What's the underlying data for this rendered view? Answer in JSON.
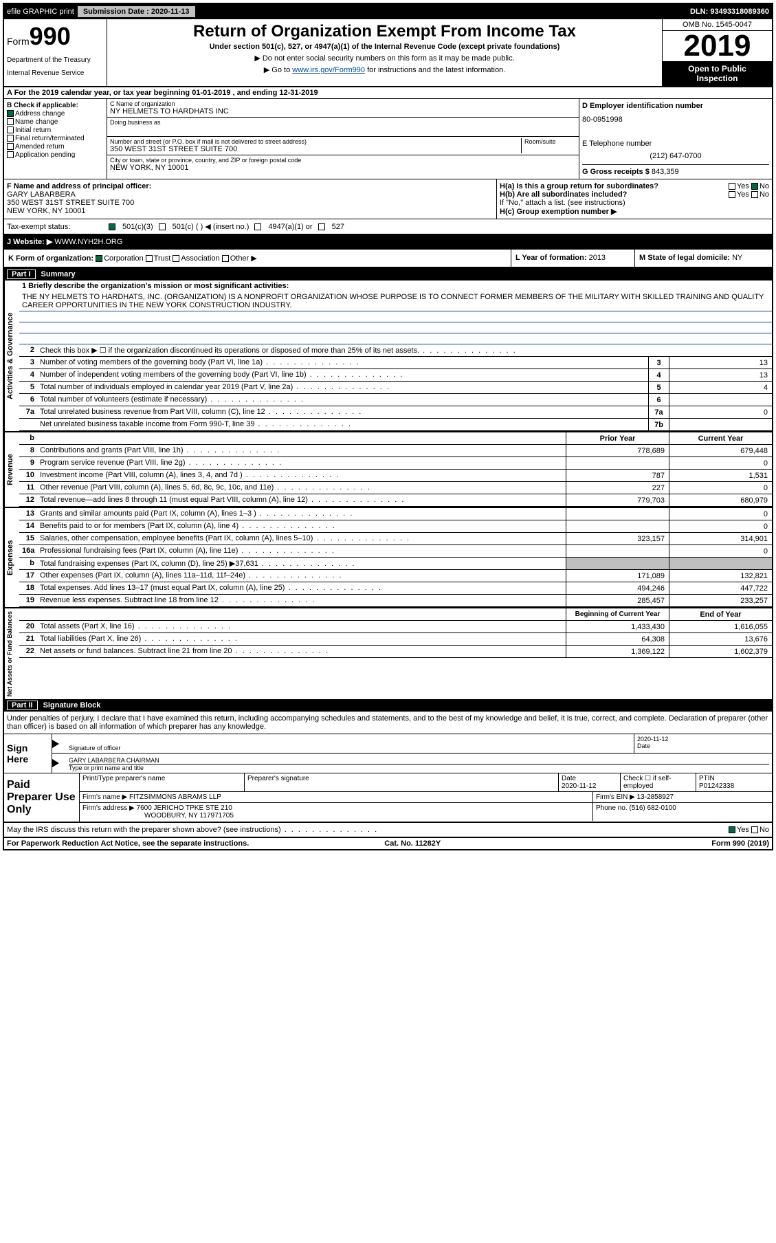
{
  "topbar": {
    "efile": "efile GRAPHIC print",
    "submission_label": "Submission Date :",
    "submission_date": "2020-11-13",
    "dln": "DLN: 93493318089360"
  },
  "header": {
    "form_prefix": "Form",
    "form_number": "990",
    "dept1": "Department of the Treasury",
    "dept2": "Internal Revenue Service",
    "title": "Return of Organization Exempt From Income Tax",
    "subtitle": "Under section 501(c), 527, or 4947(a)(1) of the Internal Revenue Code (except private foundations)",
    "note1": "▶ Do not enter social security numbers on this form as it may be made public.",
    "note2_pre": "▶ Go to ",
    "note2_link": "www.irs.gov/Form990",
    "note2_post": " for instructions and the latest information.",
    "omb": "OMB No. 1545-0047",
    "year": "2019",
    "inspect1": "Open to Public",
    "inspect2": "Inspection"
  },
  "rowA": "A For the 2019 calendar year, or tax year beginning 01-01-2019    , and ending 12-31-2019",
  "boxB": {
    "label": "B Check if applicable:",
    "opts": [
      "Address change",
      "Name change",
      "Initial return",
      "Final return/terminated",
      "Amended return",
      "Application pending"
    ],
    "checked_idx": 0
  },
  "boxC": {
    "name_lbl": "C Name of organization",
    "name": "NY HELMETS TO HARDHATS INC",
    "dba_lbl": "Doing business as",
    "dba": "",
    "addr_lbl": "Number and street (or P.O. box if mail is not delivered to street address)",
    "room_lbl": "Room/suite",
    "addr": "350 WEST 31ST STREET SUITE 700",
    "city_lbl": "City or town, state or province, country, and ZIP or foreign postal code",
    "city": "NEW YORK, NY  10001"
  },
  "boxD": {
    "lbl": "D Employer identification number",
    "val": "80-0951998"
  },
  "boxE": {
    "lbl": "E Telephone number",
    "val": "(212) 647-0700"
  },
  "boxG": {
    "lbl": "G Gross receipts $",
    "val": "843,359"
  },
  "boxF": {
    "lbl": "F  Name and address of principal officer:",
    "name": "GARY LABARBERA",
    "addr1": "350 WEST 31ST STREET SUITE 700",
    "addr2": "NEW YORK, NY  10001"
  },
  "boxH": {
    "a": "H(a)  Is this a group return for subordinates?",
    "a_no": true,
    "b": "H(b)  Are all subordinates included?",
    "b_note": "If \"No,\" attach a list. (see instructions)",
    "c": "H(c)  Group exemption number ▶"
  },
  "taxStatus": {
    "lbl": "Tax-exempt status:",
    "opts": [
      "501(c)(3)",
      "501(c) (   ) ◀ (insert no.)",
      "4947(a)(1) or",
      "527"
    ],
    "checked_idx": 0
  },
  "website": {
    "lbl": "J  Website: ▶",
    "val": "WWW.NYH2H.ORG"
  },
  "rowK": "K Form of organization:",
  "rowK_opts": [
    "Corporation",
    "Trust",
    "Association",
    "Other ▶"
  ],
  "rowL": {
    "lbl": "L Year of formation:",
    "val": "2013"
  },
  "rowM": {
    "lbl": "M State of legal domicile:",
    "val": "NY"
  },
  "part1": {
    "num": "Part I",
    "title": "Summary"
  },
  "mission_lbl": "1  Briefly describe the organization's mission or most significant activities:",
  "mission": "THE NY HELMETS TO HARDHATS, INC. (ORGANIZATION) IS A NONPROFIT ORGANIZATION WHOSE PURPOSE IS TO CONNECT FORMER MEMBERS OF THE MILITARY WITH SKILLED TRAINING AND QUALITY CAREER OPPORTUNITIES IN THE NEW YORK CONSTRUCTION INDUSTRY.",
  "vtabs": [
    "Activities & Governance",
    "Revenue",
    "Expenses",
    "Net Assets or Fund Balances"
  ],
  "lines_gov": [
    {
      "n": "2",
      "d": "Check this box ▶ ☐  if the organization discontinued its operations or disposed of more than 25% of its net assets."
    },
    {
      "n": "3",
      "d": "Number of voting members of the governing body (Part VI, line 1a)",
      "box": "3",
      "v": "13"
    },
    {
      "n": "4",
      "d": "Number of independent voting members of the governing body (Part VI, line 1b)",
      "box": "4",
      "v": "13"
    },
    {
      "n": "5",
      "d": "Total number of individuals employed in calendar year 2019 (Part V, line 2a)",
      "box": "5",
      "v": "4"
    },
    {
      "n": "6",
      "d": "Total number of volunteers (estimate if necessary)",
      "box": "6",
      "v": ""
    },
    {
      "n": "7a",
      "d": "Total unrelated business revenue from Part VIII, column (C), line 12",
      "box": "7a",
      "v": "0"
    },
    {
      "n": "",
      "d": "Net unrelated business taxable income from Form 990-T, line 39",
      "box": "7b",
      "v": ""
    }
  ],
  "col_hdrs": {
    "py": "Prior Year",
    "cy": "Current Year"
  },
  "lines_rev": [
    {
      "n": "8",
      "d": "Contributions and grants (Part VIII, line 1h)",
      "py": "778,689",
      "cy": "679,448"
    },
    {
      "n": "9",
      "d": "Program service revenue (Part VIII, line 2g)",
      "py": "",
      "cy": "0"
    },
    {
      "n": "10",
      "d": "Investment income (Part VIII, column (A), lines 3, 4, and 7d )",
      "py": "787",
      "cy": "1,531"
    },
    {
      "n": "11",
      "d": "Other revenue (Part VIII, column (A), lines 5, 6d, 8c, 9c, 10c, and 11e)",
      "py": "227",
      "cy": "0"
    },
    {
      "n": "12",
      "d": "Total revenue—add lines 8 through 11 (must equal Part VIII, column (A), line 12)",
      "py": "779,703",
      "cy": "680,979"
    }
  ],
  "lines_exp": [
    {
      "n": "13",
      "d": "Grants and similar amounts paid (Part IX, column (A), lines 1–3 )",
      "py": "",
      "cy": "0"
    },
    {
      "n": "14",
      "d": "Benefits paid to or for members (Part IX, column (A), line 4)",
      "py": "",
      "cy": "0"
    },
    {
      "n": "15",
      "d": "Salaries, other compensation, employee benefits (Part IX, column (A), lines 5–10)",
      "py": "323,157",
      "cy": "314,901"
    },
    {
      "n": "16a",
      "d": "Professional fundraising fees (Part IX, column (A), line 11e)",
      "py": "",
      "cy": "0"
    },
    {
      "n": "b",
      "d": "Total fundraising expenses (Part IX, column (D), line 25) ▶37,631",
      "py": "grey",
      "cy": "grey"
    },
    {
      "n": "17",
      "d": "Other expenses (Part IX, column (A), lines 11a–11d, 11f–24e)",
      "py": "171,089",
      "cy": "132,821"
    },
    {
      "n": "18",
      "d": "Total expenses. Add lines 13–17 (must equal Part IX, column (A), line 25)",
      "py": "494,246",
      "cy": "447,722"
    },
    {
      "n": "19",
      "d": "Revenue less expenses. Subtract line 18 from line 12",
      "py": "285,457",
      "cy": "233,257"
    }
  ],
  "col_hdrs2": {
    "py": "Beginning of Current Year",
    "cy": "End of Year"
  },
  "lines_net": [
    {
      "n": "20",
      "d": "Total assets (Part X, line 16)",
      "py": "1,433,430",
      "cy": "1,616,055"
    },
    {
      "n": "21",
      "d": "Total liabilities (Part X, line 26)",
      "py": "64,308",
      "cy": "13,676"
    },
    {
      "n": "22",
      "d": "Net assets or fund balances. Subtract line 21 from line 20",
      "py": "1,369,122",
      "cy": "1,602,379"
    }
  ],
  "part2": {
    "num": "Part II",
    "title": "Signature Block"
  },
  "sig_decl": "Under penalties of perjury, I declare that I have examined this return, including accompanying schedules and statements, and to the best of my knowledge and belief, it is true, correct, and complete. Declaration of preparer (other than officer) is based on all information of which preparer has any knowledge.",
  "sign_here": "Sign Here",
  "sig_officer_lbl": "Signature of officer",
  "sig_date_lbl": "Date",
  "sig_date": "2020-11-12",
  "sig_name": "GARY LABARBERA  CHAIRMAN",
  "sig_name_lbl": "Type or print name and title",
  "paid": {
    "title": "Paid Preparer Use Only",
    "h1": "Print/Type preparer's name",
    "h2": "Preparer's signature",
    "h3": "Date",
    "h4": "Check ☐ if self-employed",
    "h5": "PTIN",
    "date": "2020-11-12",
    "ptin": "P01242338",
    "firm_lbl": "Firm's name    ▶",
    "firm": "FITZSIMMONS ABRAMS LLP",
    "ein_lbl": "Firm's EIN ▶",
    "ein": "13-2858927",
    "addr_lbl": "Firm's address ▶",
    "addr": "7600 JERICHO TPKE STE 210",
    "addr2": "WOODBURY, NY  117971705",
    "phone_lbl": "Phone no.",
    "phone": "(516) 682-0100"
  },
  "irs_q": "May the IRS discuss this return with the preparer shown above? (see instructions)",
  "footer": {
    "l": "For Paperwork Reduction Act Notice, see the separate instructions.",
    "m": "Cat. No. 11282Y",
    "r": "Form 990 (2019)"
  }
}
